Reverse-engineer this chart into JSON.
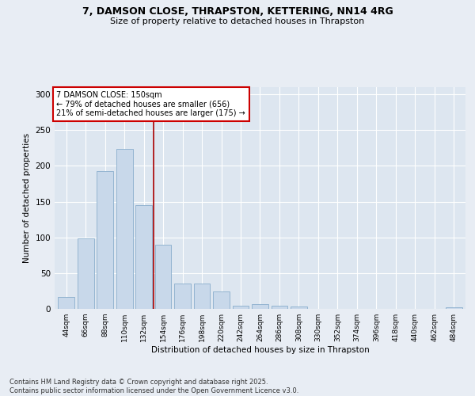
{
  "title_line1": "7, DAMSON CLOSE, THRAPSTON, KETTERING, NN14 4RG",
  "title_line2": "Size of property relative to detached houses in Thrapston",
  "xlabel": "Distribution of detached houses by size in Thrapston",
  "ylabel": "Number of detached properties",
  "categories": [
    "44sqm",
    "66sqm",
    "88sqm",
    "110sqm",
    "132sqm",
    "154sqm",
    "176sqm",
    "198sqm",
    "220sqm",
    "242sqm",
    "264sqm",
    "286sqm",
    "308sqm",
    "330sqm",
    "352sqm",
    "374sqm",
    "396sqm",
    "418sqm",
    "440sqm",
    "462sqm",
    "484sqm"
  ],
  "values": [
    17,
    98,
    193,
    224,
    145,
    90,
    35,
    35,
    24,
    4,
    7,
    4,
    3,
    0,
    0,
    0,
    0,
    0,
    0,
    0,
    2
  ],
  "bar_color": "#c8d8ea",
  "bar_edge_color": "#8aaecc",
  "vline_pos": 4.5,
  "vline_color": "#aa0000",
  "annotation_text": "7 DAMSON CLOSE: 150sqm\n← 79% of detached houses are smaller (656)\n21% of semi-detached houses are larger (175) →",
  "annotation_box_facecolor": "#ffffff",
  "annotation_box_edgecolor": "#cc0000",
  "ylim": [
    0,
    310
  ],
  "yticks": [
    0,
    50,
    100,
    150,
    200,
    250,
    300
  ],
  "fig_facecolor": "#e8edf4",
  "ax_facecolor": "#dde6f0",
  "footer_line1": "Contains HM Land Registry data © Crown copyright and database right 2025.",
  "footer_line2": "Contains public sector information licensed under the Open Government Licence v3.0."
}
